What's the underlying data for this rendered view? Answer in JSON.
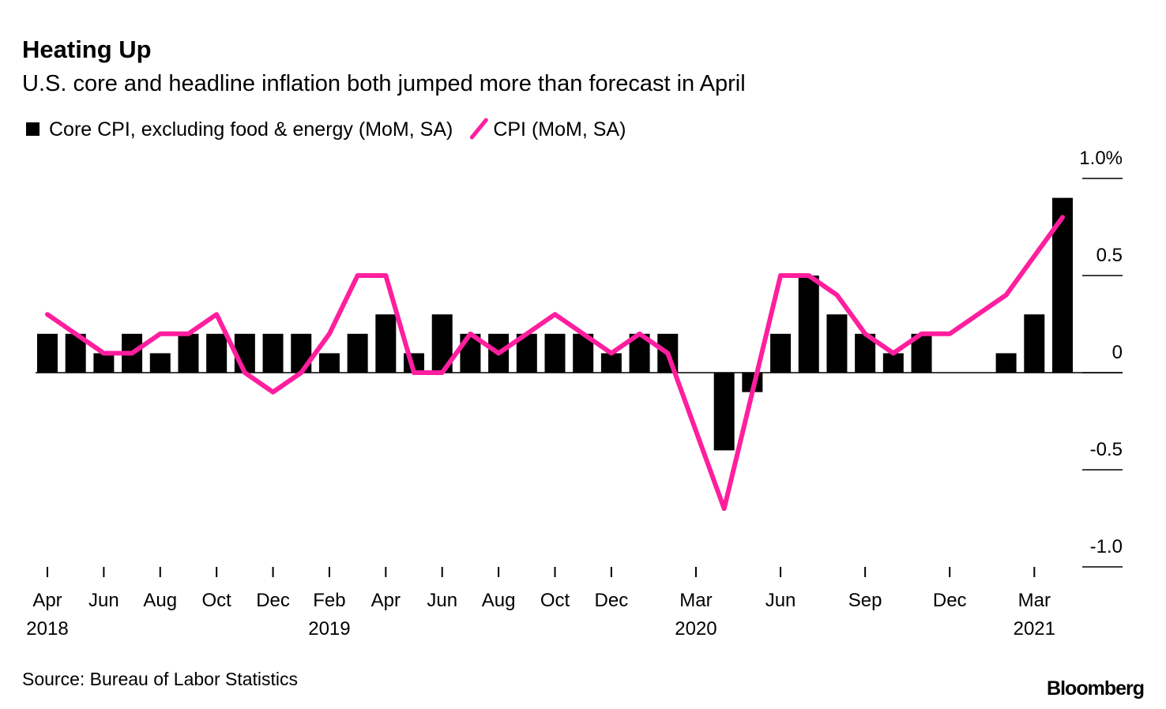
{
  "chart_data": {
    "type": "bar",
    "title": "Heating Up",
    "subtitle": "U.S. core and headline inflation both jumped more than forecast in April",
    "categories": [
      "Apr",
      null,
      "Jun",
      null,
      "Aug",
      null,
      "Oct",
      null,
      "Dec",
      null,
      "Feb",
      null,
      "Apr",
      null,
      "Jun",
      null,
      "Aug",
      null,
      "Oct",
      null,
      "Dec",
      null,
      null,
      "Mar",
      null,
      null,
      "Jun",
      null,
      null,
      "Sep",
      null,
      null,
      "Dec",
      null,
      null,
      "Mar",
      null
    ],
    "category_years": [
      "2018",
      null,
      null,
      null,
      null,
      null,
      null,
      null,
      null,
      null,
      "2019",
      null,
      null,
      null,
      null,
      null,
      null,
      null,
      null,
      null,
      null,
      null,
      null,
      "2020",
      null,
      null,
      null,
      null,
      null,
      null,
      null,
      null,
      null,
      null,
      null,
      "2021",
      null
    ],
    "series": [
      {
        "name": "Core CPI, excluding food & energy (MoM, SA)",
        "type": "bar",
        "color": "#000000",
        "values": [
          0.2,
          0.2,
          0.1,
          0.2,
          0.1,
          0.2,
          0.2,
          0.2,
          0.2,
          0.2,
          0.1,
          0.2,
          0.3,
          0.1,
          0.3,
          0.2,
          0.2,
          0.2,
          0.2,
          0.2,
          0.1,
          0.2,
          0.2,
          0.0,
          -0.4,
          -0.1,
          0.2,
          0.5,
          0.3,
          0.2,
          0.1,
          0.2,
          0.0,
          0.0,
          0.1,
          0.3,
          0.9
        ]
      },
      {
        "name": "CPI (MoM, SA)",
        "type": "line",
        "color": "#ff1e9e",
        "values": [
          0.3,
          0.2,
          0.1,
          0.1,
          0.2,
          0.2,
          0.3,
          0.0,
          -0.1,
          0.0,
          0.2,
          0.5,
          0.5,
          0.0,
          0.0,
          0.2,
          0.1,
          0.2,
          0.3,
          0.2,
          0.1,
          0.2,
          0.1,
          -0.3,
          -0.7,
          -0.1,
          0.5,
          0.5,
          0.4,
          0.2,
          0.1,
          0.2,
          0.2,
          0.3,
          0.4,
          0.6,
          0.8
        ]
      }
    ],
    "ylim": [
      -1,
      1
    ],
    "yticks": [
      {
        "value": 1,
        "label": "1.0%"
      },
      0.5,
      0,
      -0.5,
      {
        "value": -1,
        "label": "-1.0"
      }
    ],
    "source": "Source: Bureau of Labor Statistics",
    "brand": "Bloomberg"
  }
}
